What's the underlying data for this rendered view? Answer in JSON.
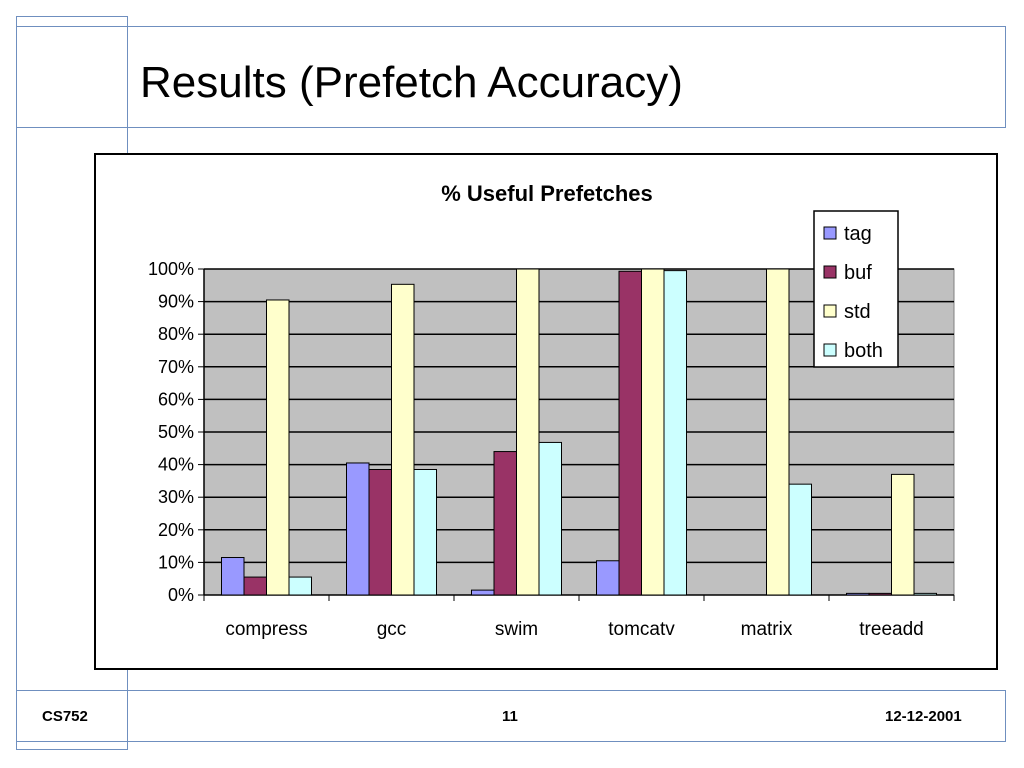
{
  "slide": {
    "title": "Results (Prefetch Accuracy)"
  },
  "footer": {
    "left": "CS752",
    "center": "11",
    "right": "12-12-2001"
  },
  "chart_data": {
    "type": "bar",
    "title": "% Useful Prefetches",
    "categories": [
      "compress",
      "gcc",
      "swim",
      "tomcatv",
      "matrix",
      "treeadd"
    ],
    "series": [
      {
        "name": "tag",
        "color": "#9999ff",
        "values": [
          11.5,
          40.5,
          1.5,
          10.5,
          0,
          0.5
        ]
      },
      {
        "name": "buf",
        "color": "#993366",
        "values": [
          5.5,
          38.5,
          44,
          99.3,
          0,
          0.5
        ]
      },
      {
        "name": "std",
        "color": "#ffffcc",
        "values": [
          90.5,
          95.3,
          100,
          100,
          100,
          37
        ]
      },
      {
        "name": "both",
        "color": "#ccffff",
        "values": [
          5.5,
          38.5,
          46.8,
          99.5,
          34,
          0.5
        ]
      }
    ],
    "ylim": [
      0,
      100
    ],
    "yticks": [
      "0%",
      "10%",
      "20%",
      "30%",
      "40%",
      "50%",
      "60%",
      "70%",
      "80%",
      "90%",
      "100%"
    ],
    "grid": true,
    "plot_background": "#c0c0c0",
    "legend_position": "top-right"
  }
}
